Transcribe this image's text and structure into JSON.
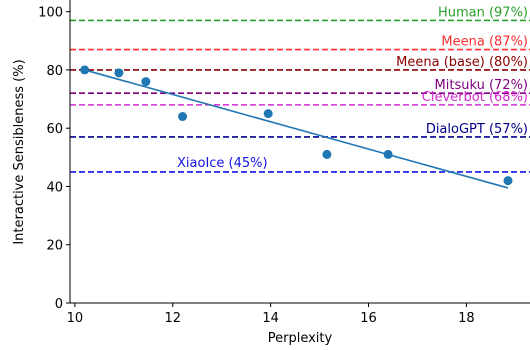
{
  "chart_data": {
    "type": "scatter",
    "title": "",
    "xlabel": "Perplexity",
    "ylabel": "Interactive Sensibleness (%)",
    "xlim": [
      9.9,
      19.3
    ],
    "ylim": [
      0,
      104
    ],
    "xticks": [
      10,
      12,
      14,
      16,
      18
    ],
    "yticks": [
      0,
      20,
      40,
      60,
      80,
      100
    ],
    "grid": false,
    "marker_color": "#1f77b4",
    "points": [
      {
        "x": 10.2,
        "y": 80
      },
      {
        "x": 10.9,
        "y": 79
      },
      {
        "x": 11.45,
        "y": 76
      },
      {
        "x": 12.2,
        "y": 64
      },
      {
        "x": 13.95,
        "y": 65
      },
      {
        "x": 15.15,
        "y": 51
      },
      {
        "x": 16.4,
        "y": 51
      },
      {
        "x": 18.85,
        "y": 42
      }
    ],
    "trend_line": {
      "color": "#1f77b4",
      "from": {
        "x": 10.2,
        "y": 80
      },
      "to": {
        "x": 18.85,
        "y": 39.5
      }
    },
    "reference_lines": [
      {
        "label": "Human (97%)",
        "value": 97,
        "color": "#2ca02c"
      },
      {
        "label": "Meena (87%)",
        "value": 87,
        "color": "#ff2d2d"
      },
      {
        "label": "Meena (base) (80%)",
        "value": 80,
        "color": "#8b0000"
      },
      {
        "label": "Mitsuku (72%)",
        "value": 72,
        "color": "#800080"
      },
      {
        "label": "Cleverbot (68%)",
        "value": 68,
        "color": "#d42bd4"
      },
      {
        "label": "DialoGPT (57%)",
        "value": 57,
        "color": "#00008b"
      },
      {
        "label": "XiaoIce (45%)",
        "value": 45,
        "color": "#1414e6"
      }
    ]
  }
}
